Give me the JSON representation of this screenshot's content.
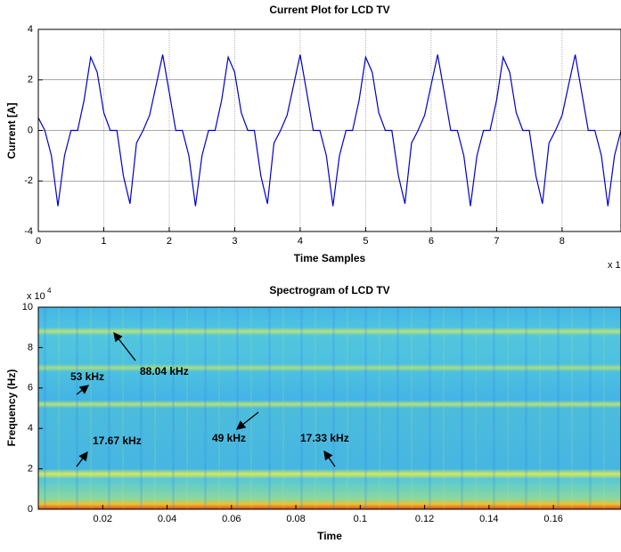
{
  "chart_data": [
    {
      "type": "line",
      "title": "Current Plot for LCD TV",
      "xlabel": "Time Samples",
      "ylabel": "Current [A]",
      "x_multiplier": "x 1",
      "x": [
        0,
        0.1,
        0.2,
        0.3,
        0.4,
        0.5,
        0.6,
        0.7,
        0.8,
        0.9,
        1,
        1.1,
        1.2,
        1.3,
        1.4,
        1.5,
        1.6,
        1.7,
        1.8,
        1.9,
        2,
        2.1,
        2.2,
        2.3,
        2.4,
        2.5,
        2.6,
        2.7,
        2.8,
        2.9,
        3,
        3.1,
        3.2,
        3.3,
        3.4,
        3.5,
        3.6,
        3.7,
        3.8,
        3.9,
        4,
        4.1,
        4.2,
        4.3,
        4.4,
        4.5,
        4.6,
        4.7,
        4.8,
        4.9,
        5,
        5.1,
        5.2,
        5.3,
        5.4,
        5.5,
        5.6,
        5.7,
        5.8,
        5.9,
        6,
        6.1,
        6.2,
        6.3,
        6.4,
        6.5,
        6.6,
        6.7,
        6.8,
        6.9,
        7,
        7.1,
        7.2,
        7.3,
        7.4,
        7.5,
        7.6,
        7.7,
        7.8,
        7.9,
        8,
        8.1,
        8.2,
        8.3,
        8.4,
        8.5,
        8.6,
        8.7,
        8.8,
        8.9
      ],
      "series": [
        {
          "color": "#0000cc",
          "values": [
            0.5,
            0,
            -1,
            -3,
            -1,
            0,
            0,
            1.2,
            2.9,
            2.3,
            0.7,
            0,
            0,
            -1.8,
            -2.9,
            -0.5,
            0,
            0.6,
            1.8,
            3,
            1.5,
            0,
            0,
            -1,
            -3,
            -1,
            0,
            0,
            1.2,
            2.9,
            2.3,
            0.7,
            0,
            0,
            -1.8,
            -2.9,
            -0.5,
            0,
            0.6,
            1.8,
            3,
            1.5,
            0,
            0,
            -1,
            -3,
            -1,
            0,
            0,
            1.2,
            2.9,
            2.3,
            0.7,
            0,
            0,
            -1.8,
            -2.9,
            -0.5,
            0,
            0.6,
            1.8,
            3,
            1.5,
            0,
            0,
            -1,
            -3,
            -1,
            0,
            0,
            1.2,
            2.9,
            2.3,
            0.7,
            0,
            0,
            -1.8,
            -2.9,
            -0.5,
            0,
            0.6,
            1.8,
            3,
            1.5,
            0,
            0,
            -1,
            -3,
            -1,
            0
          ]
        }
      ],
      "xlim": [
        0,
        8.9
      ],
      "ylim": [
        -4,
        4
      ],
      "xticks": [
        0,
        1,
        2,
        3,
        4,
        5,
        6,
        7,
        8
      ],
      "yticks": [
        -4,
        -2,
        0,
        2,
        4
      ],
      "grid": true
    },
    {
      "type": "spectrogram",
      "title": "Spectrogram of LCD TV",
      "xlabel": "Time",
      "ylabel": "Frequency (Hz)",
      "y_multiplier": "x 10",
      "y_multiplier_exp": "4",
      "xlim": [
        0,
        0.181
      ],
      "ylim": [
        0,
        100000
      ],
      "xticks": [
        0.02,
        0.04,
        0.06,
        0.08,
        0.1,
        0.12,
        0.14,
        0.16
      ],
      "yticks": [
        {
          "value": 0,
          "label": "0"
        },
        {
          "value": 20000,
          "label": "2"
        },
        {
          "value": 40000,
          "label": "4"
        },
        {
          "value": 60000,
          "label": "6"
        },
        {
          "value": 80000,
          "label": "8"
        },
        {
          "value": 100000,
          "label": "10"
        }
      ],
      "annotations": [
        "88.04 kHz",
        "53 kHz",
        "17.67 kHz",
        "49 kHz",
        "17.33 kHz"
      ]
    }
  ]
}
